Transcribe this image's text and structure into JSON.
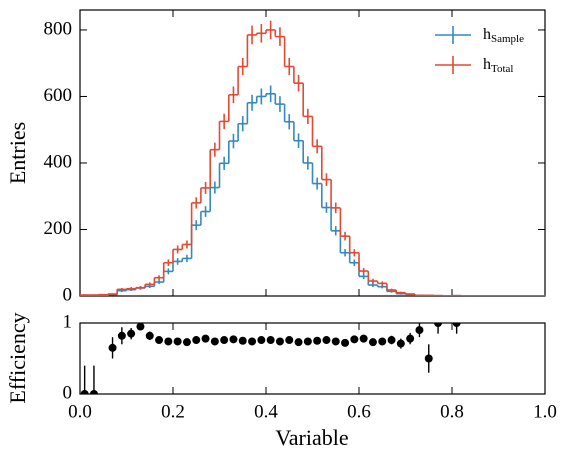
{
  "chart_data": [
    {
      "type": "histogram",
      "ylabel": "Entries",
      "legend": "upper right",
      "bins": [
        0,
        0.02,
        0.04,
        0.06,
        0.08,
        0.1,
        0.12,
        0.14,
        0.16,
        0.18,
        0.2,
        0.22,
        0.24,
        0.26,
        0.28,
        0.3,
        0.32,
        0.34,
        0.36,
        0.38,
        0.4,
        0.42,
        0.44,
        0.46,
        0.48,
        0.5,
        0.52,
        0.54,
        0.56,
        0.58,
        0.6,
        0.62,
        0.64,
        0.66,
        0.68,
        0.7,
        0.72,
        0.74,
        0.76,
        0.78,
        0.8,
        0.82,
        0.84,
        0.86,
        0.88,
        0.9,
        0.92,
        0.94,
        0.96,
        0.98,
        1.0
      ],
      "xlim": [
        0,
        1
      ],
      "ylim": [
        0,
        860
      ],
      "yticks": [
        0,
        200,
        400,
        600,
        800
      ],
      "series": [
        {
          "name": "h",
          "subscript": "Sample",
          "color": "#348ABD",
          "values": [
            0,
            0,
            0,
            4,
            16,
            19,
            24,
            29,
            42,
            74,
            104,
            113,
            213,
            254,
            326,
            399,
            466,
            518,
            581,
            600,
            608,
            577,
            524,
            467,
            400,
            338,
            266,
            196,
            130,
            100,
            59,
            33,
            28,
            14,
            7,
            5,
            2,
            1,
            1,
            0,
            1,
            0,
            0,
            0,
            0,
            0,
            0,
            0,
            0,
            0
          ],
          "errors": [
            0,
            0,
            0,
            2,
            4,
            4,
            5,
            5,
            6,
            9,
            10,
            11,
            15,
            16,
            18,
            20,
            22,
            23,
            24,
            24,
            25,
            24,
            23,
            22,
            20,
            18,
            16,
            14,
            11,
            10,
            8,
            6,
            5,
            4,
            3,
            2,
            1,
            1,
            1,
            0,
            1,
            0,
            0,
            0,
            0,
            0,
            0,
            0,
            0,
            0
          ]
        },
        {
          "name": "h",
          "subscript": "Total",
          "color": "#E24A33",
          "values": [
            3,
            3,
            4,
            6,
            20,
            22,
            25,
            35,
            55,
            100,
            140,
            155,
            280,
            325,
            440,
            525,
            605,
            690,
            785,
            790,
            800,
            780,
            690,
            640,
            540,
            450,
            350,
            265,
            180,
            130,
            75,
            45,
            38,
            18,
            10,
            6,
            2,
            2,
            1,
            0,
            1,
            0,
            0,
            0,
            0,
            0,
            0,
            0,
            0,
            0
          ],
          "errors": [
            2,
            2,
            2,
            2,
            4,
            5,
            5,
            6,
            7,
            10,
            12,
            12,
            17,
            18,
            21,
            23,
            25,
            26,
            28,
            28,
            28,
            28,
            26,
            25,
            23,
            21,
            19,
            16,
            13,
            11,
            9,
            7,
            6,
            4,
            3,
            2,
            1,
            1,
            1,
            0,
            1,
            0,
            0,
            0,
            0,
            0,
            0,
            0,
            0,
            0
          ]
        }
      ]
    },
    {
      "type": "errorbar",
      "xlabel": "Variable",
      "ylabel": "Efficiency",
      "color": "#000000",
      "x": [
        0.01,
        0.03,
        0.05,
        0.07,
        0.09,
        0.11,
        0.13,
        0.15,
        0.17,
        0.19,
        0.21,
        0.23,
        0.25,
        0.27,
        0.29,
        0.31,
        0.33,
        0.35,
        0.37,
        0.39,
        0.41,
        0.43,
        0.45,
        0.47,
        0.49,
        0.51,
        0.53,
        0.55,
        0.57,
        0.59,
        0.61,
        0.63,
        0.65,
        0.67,
        0.69,
        0.71,
        0.73,
        0.75,
        0.77,
        0.79,
        0.81,
        0.83,
        0.85,
        0.87,
        0.89,
        0.91,
        0.93,
        0.95,
        0.97,
        0.99
      ],
      "values": [
        0,
        0,
        null,
        0.65,
        0.82,
        0.85,
        0.95,
        0.82,
        0.76,
        0.74,
        0.74,
        0.73,
        0.76,
        0.78,
        0.74,
        0.76,
        0.77,
        0.75,
        0.74,
        0.76,
        0.76,
        0.74,
        0.76,
        0.73,
        0.74,
        0.75,
        0.76,
        0.74,
        0.72,
        0.77,
        0.78,
        0.73,
        0.74,
        0.76,
        0.71,
        0.78,
        0.9,
        0.5,
        1.0,
        null,
        1.0,
        null,
        null,
        null,
        null,
        null,
        null,
        null,
        null,
        null
      ],
      "errors": [
        0.4,
        0.4,
        null,
        0.15,
        0.12,
        0.08,
        0.05,
        0.06,
        0.04,
        0.04,
        0.04,
        0.04,
        0.04,
        0.03,
        0.03,
        0.03,
        0.03,
        0.03,
        0.03,
        0.03,
        0.03,
        0.03,
        0.03,
        0.03,
        0.03,
        0.03,
        0.03,
        0.03,
        0.04,
        0.04,
        0.04,
        0.05,
        0.05,
        0.06,
        0.07,
        0.08,
        0.1,
        0.2,
        0.15,
        null,
        0.15,
        null,
        null,
        null,
        null,
        null,
        null,
        null,
        null,
        null
      ],
      "xlim": [
        0,
        1
      ],
      "ylim": [
        0,
        1
      ],
      "yticks": [
        0,
        1
      ],
      "xticks": [
        {
          "value": 0,
          "label": "0.0"
        },
        {
          "value": 0.2,
          "label": "0.2"
        },
        {
          "value": 0.4,
          "label": "0.4"
        },
        {
          "value": 0.6,
          "label": "0.6"
        },
        {
          "value": 0.8,
          "label": "0.8"
        },
        {
          "value": 1,
          "label": "1.0"
        }
      ]
    }
  ]
}
